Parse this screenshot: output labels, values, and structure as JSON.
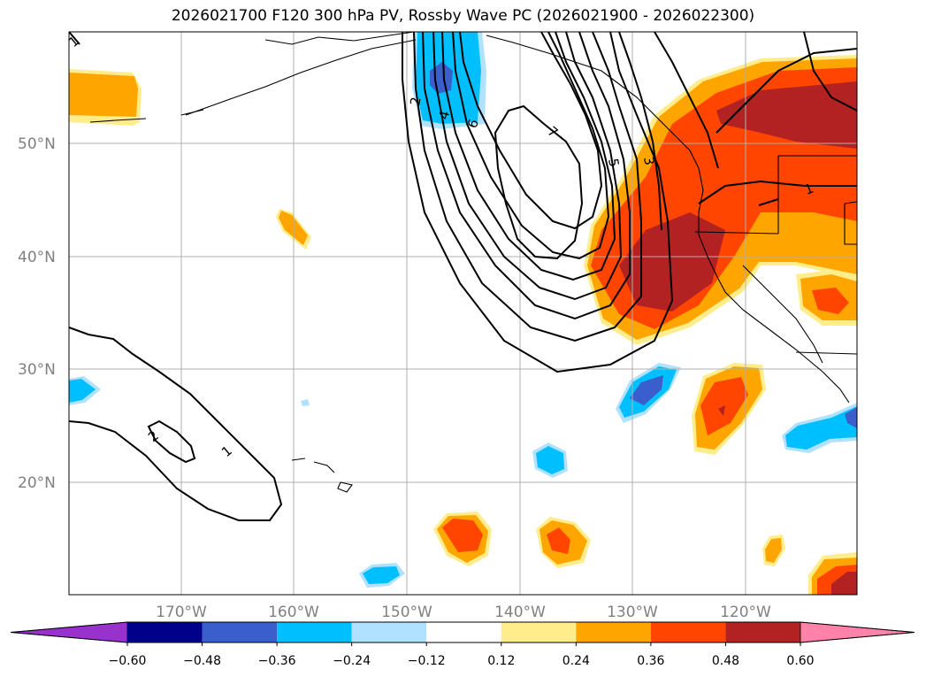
{
  "title": "2026021700 F120 300 hPa PV, Rossby Wave PC (2026021900 - 2026022300)",
  "latitude_labels": [
    "50°N",
    "40°N",
    "30°N",
    "20°N"
  ],
  "longitude_labels": [
    "170°W",
    "160°W",
    "150°W",
    "140°W",
    "130°W",
    "120°W"
  ],
  "contour_labels": {
    "c1_west": "1",
    "c2_west": "2",
    "c2_north": "2",
    "c4_north": "4",
    "c6_north": "6",
    "c7_center": "7",
    "c5_east": "5",
    "c3_east": "3",
    "c1_east": "1",
    "c1_nw": "1"
  },
  "colorbar": {
    "ticks": [
      "−0.60",
      "−0.48",
      "−0.36",
      "−0.24",
      "−0.12",
      "0.12",
      "0.24",
      "0.36",
      "0.48",
      "0.60"
    ],
    "colors": [
      "#9932cc",
      "#00008b",
      "#3a5fcd",
      "#00bfff",
      "#b0e2ff",
      "#ffffff",
      "#ffec8b",
      "#ffa500",
      "#ff4500",
      "#b22222",
      "#ff82ab"
    ]
  }
}
